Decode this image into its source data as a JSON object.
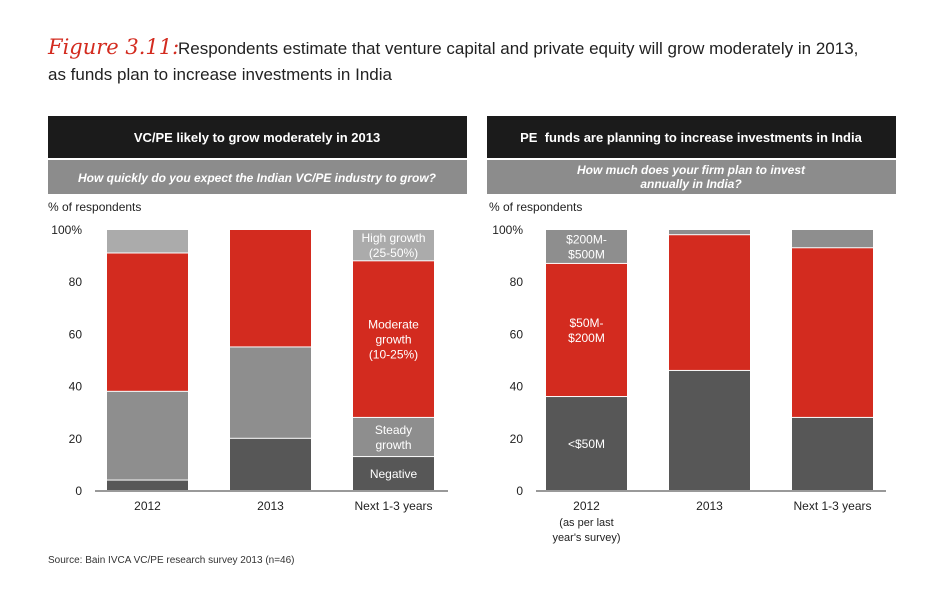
{
  "figure": {
    "label": "Figure 3.11:",
    "title_line1": "Respondents estimate that venture capital and private equity will grow moderately in 2013,",
    "title_line2": "as funds plan to increase investments in India",
    "source": "Source: Bain IVCA VC/PE research survey 2013 (n=46)"
  },
  "colors": {
    "dark": "#1b1b1b",
    "question_bar": "#8c8c8c",
    "negative": "#575757",
    "steady": "#8e8e8e",
    "red": "#d32b1f",
    "high": "#ababab",
    "axis": "#333333"
  },
  "chart_data": [
    {
      "type": "bar",
      "stacked": true,
      "panel_title": "VC/PE likely to grow moderately in 2013",
      "question": "How quickly do you expect the Indian VC/PE industry to grow?",
      "ylabel": "% of respondents",
      "ylim": [
        0,
        100
      ],
      "yticks": [
        "0",
        "20",
        "40",
        "60",
        "80",
        "100%"
      ],
      "categories": [
        "2012",
        "2013",
        "Next 1-3 years"
      ],
      "series": [
        {
          "name": "Negative",
          "color": "#575757",
          "values": [
            4,
            20,
            13
          ]
        },
        {
          "name": "Steady growth",
          "color": "#8e8e8e",
          "values": [
            34,
            35,
            15
          ]
        },
        {
          "name": "Moderate growth (10-25%)",
          "color": "#d32b1f",
          "values": [
            53,
            45,
            60
          ]
        },
        {
          "name": "High growth (25-50%)",
          "color": "#ababab",
          "values": [
            9,
            0,
            12
          ]
        }
      ],
      "annotations": [
        {
          "text": [
            "High growth",
            "(25-50%)"
          ],
          "bar": 2,
          "y": 94
        },
        {
          "text": [
            "Moderate",
            "growth",
            "(10-25%)"
          ],
          "bar": 2,
          "y": 58
        },
        {
          "text": [
            "Steady",
            "growth"
          ],
          "bar": 2,
          "y": 20.5
        },
        {
          "text": [
            "Negative"
          ],
          "bar": 2,
          "y": 6.5
        }
      ]
    },
    {
      "type": "bar",
      "stacked": true,
      "panel_title": "PE  funds are planning to increase investments in India",
      "question": "How much does your firm plan to invest annually in India?",
      "question_lines": [
        "How much does your firm plan to invest",
        "annually in India?"
      ],
      "ylabel": "% of respondents",
      "ylim": [
        0,
        100
      ],
      "yticks": [
        "0",
        "20",
        "40",
        "60",
        "80",
        "100%"
      ],
      "categories": [
        "2012",
        "2013",
        "Next 1-3 years"
      ],
      "category_sublabels": [
        [
          "(as per last",
          "year's survey)"
        ],
        [],
        []
      ],
      "series": [
        {
          "name": "<$50M",
          "color": "#575757",
          "values": [
            36,
            46,
            28
          ]
        },
        {
          "name": "$50M-$200M",
          "color": "#d32b1f",
          "values": [
            51,
            52,
            65
          ]
        },
        {
          "name": "$200M-$500M",
          "color": "#8e8e8e",
          "values": [
            13,
            2,
            7
          ]
        }
      ],
      "annotations": [
        {
          "text": [
            "$200M-",
            "$500M"
          ],
          "bar": 0,
          "y": 93.5
        },
        {
          "text": [
            "$50M-",
            "$200M"
          ],
          "bar": 0,
          "y": 61.5
        },
        {
          "text": [
            "<$50M"
          ],
          "bar": 0,
          "y": 18
        }
      ]
    }
  ]
}
